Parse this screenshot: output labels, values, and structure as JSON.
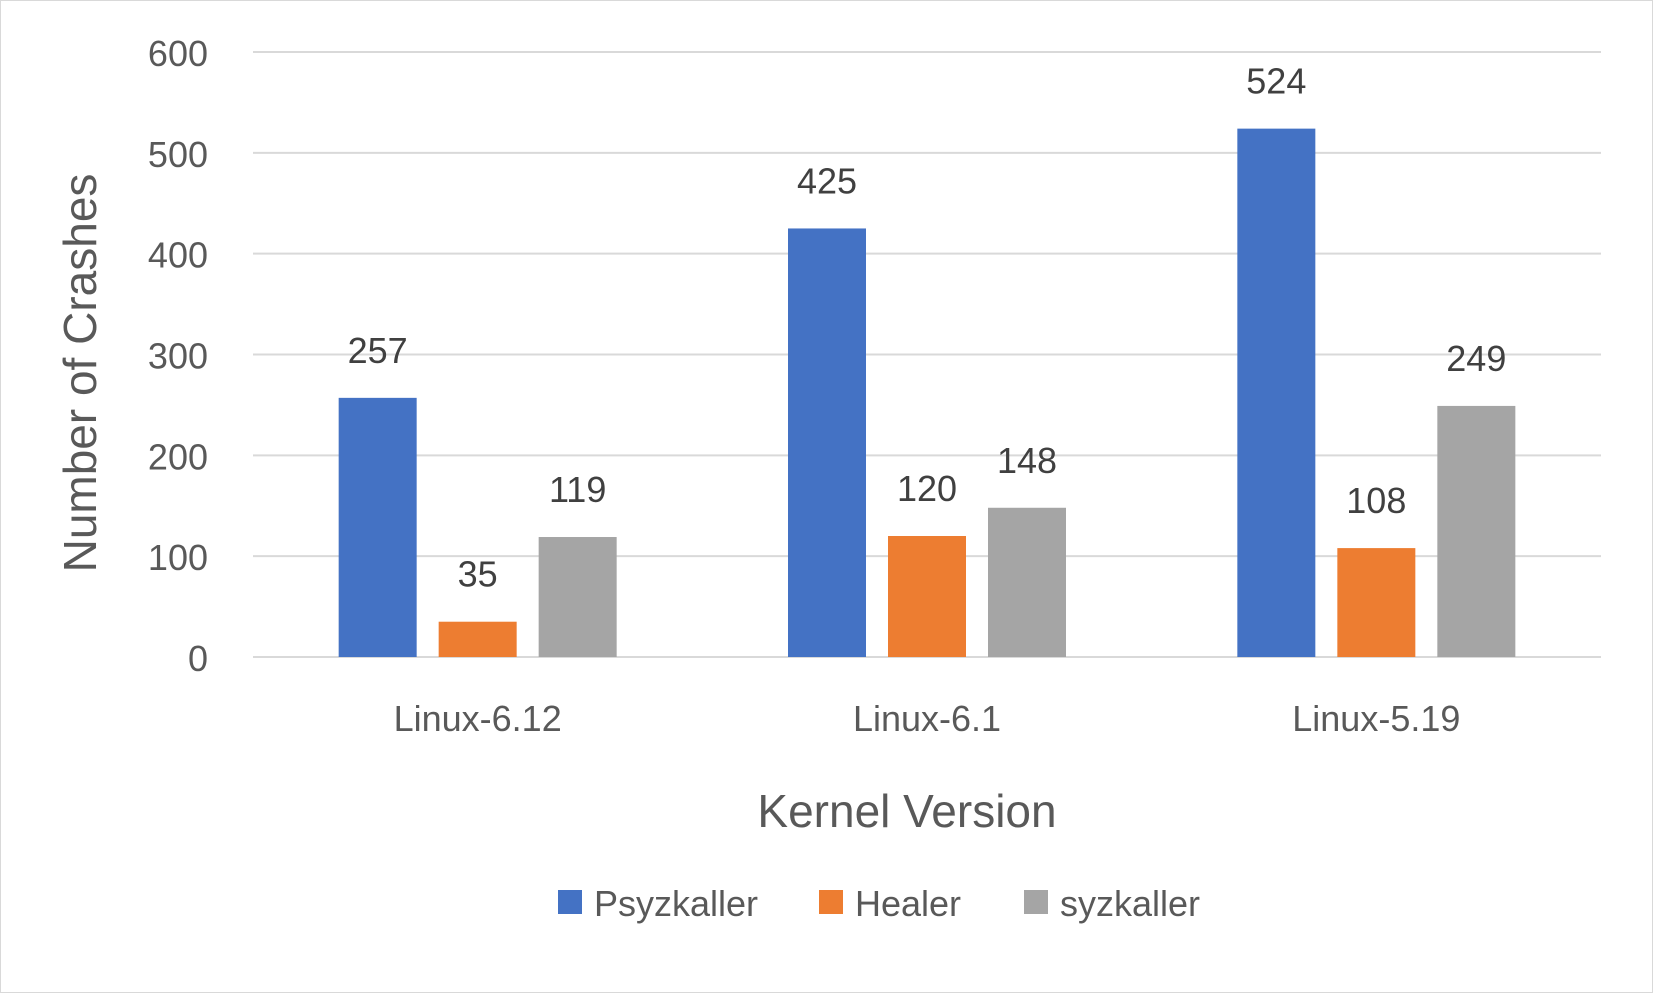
{
  "chart_data": {
    "type": "bar",
    "title": "",
    "xlabel": "Kernel Version",
    "ylabel": "Number of Crashes",
    "categories": [
      "Linux-6.12",
      "Linux-6.1",
      "Linux-5.19"
    ],
    "series": [
      {
        "name": "Psyzkaller",
        "color": "#4472C4",
        "values": [
          257,
          425,
          524
        ]
      },
      {
        "name": "Healer",
        "color": "#ED7D31",
        "values": [
          35,
          120,
          108
        ]
      },
      {
        "name": "syzkaller",
        "color": "#A5A5A5",
        "values": [
          119,
          148,
          249
        ]
      }
    ],
    "ylim": [
      0,
      600
    ],
    "yticks": [
      0,
      100,
      200,
      300,
      400,
      500,
      600
    ],
    "grid": true,
    "legend": "bottom",
    "data_labels": true
  }
}
